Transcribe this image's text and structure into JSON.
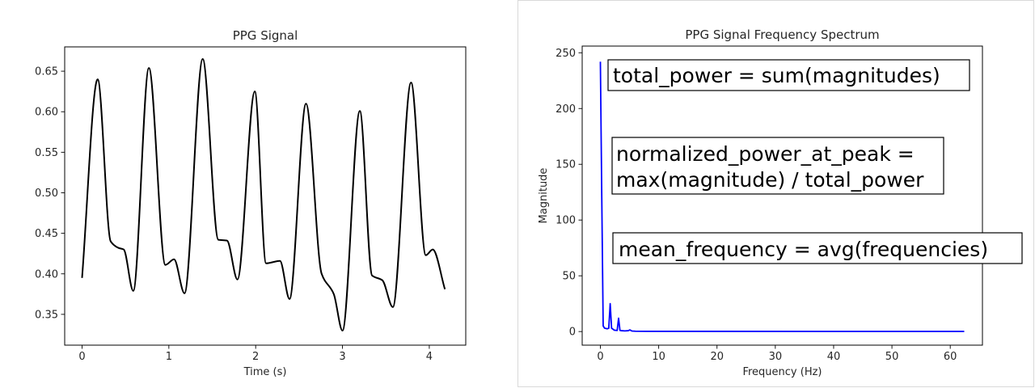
{
  "chart_data": [
    {
      "type": "line",
      "title": "PPG Signal",
      "xlabel": "Time (s)",
      "ylabel": "",
      "xlim": [
        -0.2,
        4.42
      ],
      "ylim": [
        0.312,
        0.68
      ],
      "xticks": [
        0,
        1,
        2,
        3,
        4
      ],
      "xtick_labels": [
        "0",
        "1",
        "2",
        "3",
        "4"
      ],
      "yticks": [
        0.35,
        0.4,
        0.45,
        0.5,
        0.55,
        0.6,
        0.65
      ],
      "ytick_labels": [
        "0.35",
        "0.40",
        "0.45",
        "0.50",
        "0.55",
        "0.60",
        "0.65"
      ],
      "grid": false,
      "series": [
        {
          "color": "#000000",
          "x": [
            0.0,
            0.18,
            0.33,
            0.42,
            0.48,
            0.59,
            0.77,
            0.96,
            1.06,
            1.18,
            1.39,
            1.57,
            1.67,
            1.79,
            1.99,
            2.12,
            2.28,
            2.39,
            2.58,
            2.76,
            2.9,
            3.0,
            3.2,
            3.34,
            3.46,
            3.58,
            3.79,
            3.96,
            4.04,
            4.18
          ],
          "y": [
            0.395,
            0.64,
            0.44,
            0.432,
            0.43,
            0.379,
            0.654,
            0.411,
            0.418,
            0.376,
            0.665,
            0.442,
            0.441,
            0.393,
            0.625,
            0.413,
            0.416,
            0.369,
            0.61,
            0.4,
            0.375,
            0.33,
            0.601,
            0.398,
            0.392,
            0.359,
            0.636,
            0.423,
            0.43,
            0.381
          ]
        }
      ]
    },
    {
      "type": "line",
      "title": "PPG Signal Frequency Spectrum",
      "xlabel": "Frequency (Hz)",
      "ylabel": "Magnitude",
      "xlim": [
        -3.12,
        65.52
      ],
      "ylim": [
        -12.2,
        256
      ],
      "xticks": [
        0,
        10,
        20,
        30,
        40,
        50,
        60
      ],
      "xtick_labels": [
        "0",
        "10",
        "20",
        "30",
        "40",
        "50",
        "60"
      ],
      "yticks": [
        0,
        50,
        100,
        150,
        200,
        250
      ],
      "ytick_labels": [
        "0",
        "50",
        "100",
        "150",
        "200",
        "250"
      ],
      "grid": false,
      "series": [
        {
          "color": "#0000ff",
          "x": [
            0.0,
            0.24,
            0.48,
            0.72,
            1.2,
            1.44,
            1.68,
            1.92,
            2.4,
            2.88,
            3.12,
            3.36,
            3.6,
            4.2,
            4.8,
            5.04,
            5.4,
            6.0,
            8.0,
            62.4
          ],
          "y": [
            242,
            120,
            5,
            3,
            2.5,
            3,
            25,
            3,
            1.2,
            1.0,
            12,
            1.0,
            0.8,
            0.6,
            0.8,
            1.5,
            0.5,
            0.3,
            0.2,
            0.1
          ]
        }
      ],
      "annotations": [
        [
          "total_power = sum(magnitudes)"
        ],
        [
          "normalized_power_at_peak =",
          "max(magnitude) / total_power"
        ],
        [
          "mean_frequency = avg(frequencies)"
        ]
      ]
    }
  ]
}
